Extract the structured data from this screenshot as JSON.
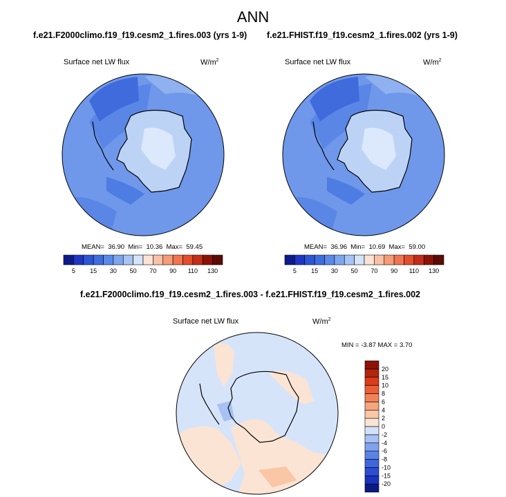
{
  "title": "ANN",
  "panels": [
    {
      "case_title": "f.e21.F2000climo.f19_f19.cesm2_1.fires.003 (yrs 1-9)",
      "variable": "Surface net LW flux",
      "units_base": "W/m",
      "units_exp": "2",
      "stats": {
        "mean_label": "MEAN=",
        "mean": "36.90",
        "min_label": "Min=",
        "min": "10.36",
        "max_label": "Max=",
        "max": "59.45"
      }
    },
    {
      "case_title": "f.e21.FHIST.f19_f19.cesm2_1.fires.002 (yrs 1-9)",
      "variable": "Surface net LW flux",
      "units_base": "W/m",
      "units_exp": "2",
      "stats": {
        "mean_label": "MEAN=",
        "mean": "36.96",
        "min_label": "Min=",
        "min": "10.69",
        "max_label": "Max=",
        "max": "59.00"
      }
    }
  ],
  "diff_panel": {
    "case_title": "f.e21.F2000climo.f19_f19.cesm2_1.fires.003 - f.e21.FHIST.f19_f19.cesm2_1.fires.002",
    "variable": "Surface net LW flux",
    "units_base": "W/m",
    "units_exp": "2",
    "stats": "MIN =  -3.87 MAX =  3.70"
  },
  "chart_data": [
    {
      "type": "heatmap",
      "projection": "south-polar-stereographic",
      "title": "f.e21.F2000climo.f19_f19.cesm2_1.fires.003 (yrs 1-9)",
      "variable": "Surface net LW flux",
      "units": "W/m2",
      "mean": 36.9,
      "min": 10.36,
      "max": 59.45,
      "colorbar": {
        "orientation": "horizontal",
        "levels": [
          5,
          10,
          15,
          20,
          30,
          40,
          50,
          60,
          70,
          80,
          90,
          100,
          110,
          120,
          130
        ],
        "tick_labels": [
          "5",
          "15",
          "30",
          "50",
          "70",
          "90",
          "110",
          "130"
        ],
        "colors": [
          "#0c1a8a",
          "#1f36c4",
          "#2d55d6",
          "#3d6ee0",
          "#5a8ae8",
          "#7ea6ef",
          "#a8c4f5",
          "#d4e4fa",
          "#fbe3d6",
          "#f9c1a5",
          "#f59c78",
          "#f0754e",
          "#e44e2c",
          "#c42d17",
          "#8c1208",
          "#5c0a05"
        ]
      }
    },
    {
      "type": "heatmap",
      "projection": "south-polar-stereographic",
      "title": "f.e21.FHIST.f19_f19.cesm2_1.fires.002 (yrs 1-9)",
      "variable": "Surface net LW flux",
      "units": "W/m2",
      "mean": 36.96,
      "min": 10.69,
      "max": 59.0,
      "colorbar": {
        "orientation": "horizontal",
        "levels": [
          5,
          10,
          15,
          20,
          30,
          40,
          50,
          60,
          70,
          80,
          90,
          100,
          110,
          120,
          130
        ],
        "tick_labels": [
          "5",
          "15",
          "30",
          "50",
          "70",
          "90",
          "110",
          "130"
        ],
        "colors": [
          "#0c1a8a",
          "#1f36c4",
          "#2d55d6",
          "#3d6ee0",
          "#5a8ae8",
          "#7ea6ef",
          "#a8c4f5",
          "#d4e4fa",
          "#fbe3d6",
          "#f9c1a5",
          "#f59c78",
          "#f0754e",
          "#e44e2c",
          "#c42d17",
          "#8c1208",
          "#5c0a05"
        ]
      }
    },
    {
      "type": "heatmap",
      "projection": "south-polar-stereographic",
      "title": "f.e21.F2000climo.f19_f19.cesm2_1.fires.003 - f.e21.FHIST.f19_f19.cesm2_1.fires.002",
      "variable": "Surface net LW flux",
      "units": "W/m2",
      "min": -3.87,
      "max": 3.7,
      "colorbar": {
        "orientation": "vertical",
        "levels": [
          -20,
          -15,
          -10,
          -8,
          -6,
          -4,
          -2,
          0,
          2,
          4,
          6,
          8,
          10,
          15,
          20
        ],
        "tick_labels": [
          "-20",
          "-15",
          "-10",
          "-8",
          "-6",
          "-4",
          "-2",
          "0",
          "2",
          "4",
          "6",
          "8",
          "10",
          "15",
          "20"
        ],
        "colors": [
          "#0a1a82",
          "#1a33bd",
          "#2c4dd2",
          "#3e66dd",
          "#5a83e6",
          "#7fa2ee",
          "#a7c1f4",
          "#d3e2fa",
          "#fbe4d4",
          "#f9c6a6",
          "#f6a57c",
          "#f28358",
          "#ec5f36",
          "#d93c1a",
          "#b3240d",
          "#8c1208"
        ]
      }
    }
  ]
}
